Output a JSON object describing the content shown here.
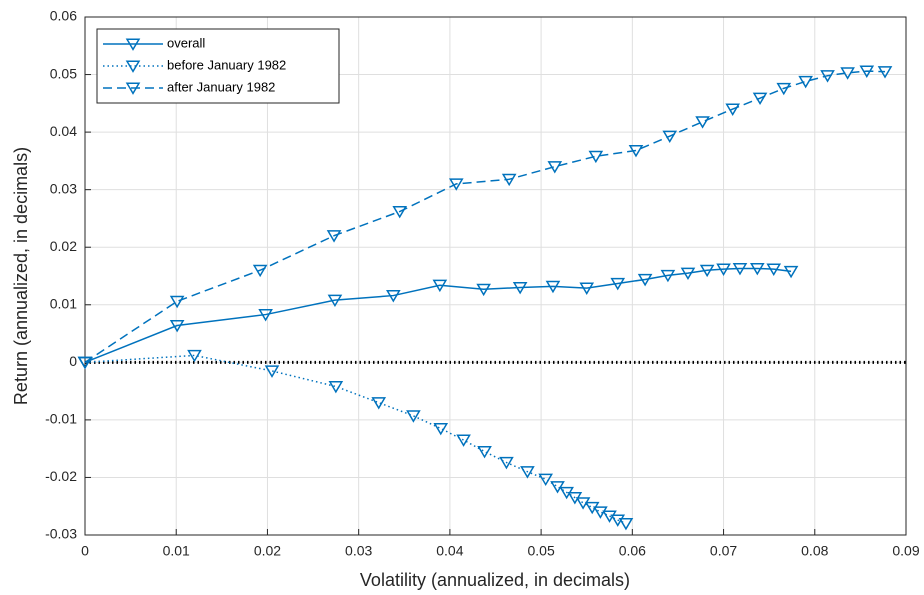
{
  "chart_data": {
    "type": "line",
    "xlabel": "Volatility (annualized, in decimals)",
    "ylabel": "Return (annualized, in decimals)",
    "xlim": [
      0,
      0.09
    ],
    "xticks": [
      0,
      0.01,
      0.02,
      0.03,
      0.04,
      0.05,
      0.06,
      0.07,
      0.08,
      0.09
    ],
    "ylim": [
      -0.03,
      0.06
    ],
    "yticks": [
      -0.03,
      -0.02,
      -0.01,
      0,
      0.01,
      0.02,
      0.03,
      0.04,
      0.05,
      0.06
    ],
    "grid": true,
    "legend": "upper left",
    "marker": "triangle-down",
    "reference_line": {
      "y": 0,
      "color": "#000000",
      "style": "dotted"
    },
    "series": [
      {
        "name": "overall",
        "color": "#0072bd",
        "style": "solid",
        "x": [
          0,
          0.0101,
          0.0198,
          0.0274,
          0.0338,
          0.0389,
          0.0437,
          0.0477,
          0.0513,
          0.055,
          0.0584,
          0.0614,
          0.0639,
          0.0661,
          0.0682,
          0.07,
          0.0718,
          0.0737,
          0.0755,
          0.0774
        ],
        "values": [
          0,
          0.0064,
          0.0083,
          0.0108,
          0.0116,
          0.0134,
          0.0127,
          0.013,
          0.0132,
          0.0129,
          0.0137,
          0.0144,
          0.0151,
          0.0155,
          0.016,
          0.0162,
          0.0163,
          0.0163,
          0.0162,
          0.0158
        ]
      },
      {
        "name": "before January 1982",
        "color": "#0072bd",
        "style": "dotted",
        "x": [
          0,
          0.012,
          0.0205,
          0.0275,
          0.0322,
          0.036,
          0.039,
          0.0415,
          0.0438,
          0.0462,
          0.0485,
          0.0505,
          0.0518,
          0.0528,
          0.0537,
          0.0546,
          0.0556,
          0.0565,
          0.0575,
          0.0584,
          0.0593
        ],
        "values": [
          0,
          0.0012,
          -0.0015,
          -0.0042,
          -0.007,
          -0.0093,
          -0.0115,
          -0.0135,
          -0.0155,
          -0.0174,
          -0.019,
          -0.0203,
          -0.0216,
          -0.0226,
          -0.0235,
          -0.0244,
          -0.0252,
          -0.026,
          -0.0267,
          -0.0274,
          -0.028
        ]
      },
      {
        "name": "after January 1982",
        "color": "#0072bd",
        "style": "dashed",
        "x": [
          0,
          0.0101,
          0.0192,
          0.0273,
          0.0345,
          0.0407,
          0.0465,
          0.0515,
          0.056,
          0.0604,
          0.0641,
          0.0677,
          0.071,
          0.074,
          0.0766,
          0.079,
          0.0814,
          0.0836,
          0.0857,
          0.0877
        ],
        "values": [
          0,
          0.0106,
          0.016,
          0.022,
          0.0262,
          0.031,
          0.0318,
          0.034,
          0.0358,
          0.0368,
          0.0393,
          0.0418,
          0.044,
          0.0459,
          0.0476,
          0.0488,
          0.0498,
          0.0503,
          0.0506,
          0.0505
        ]
      }
    ]
  }
}
